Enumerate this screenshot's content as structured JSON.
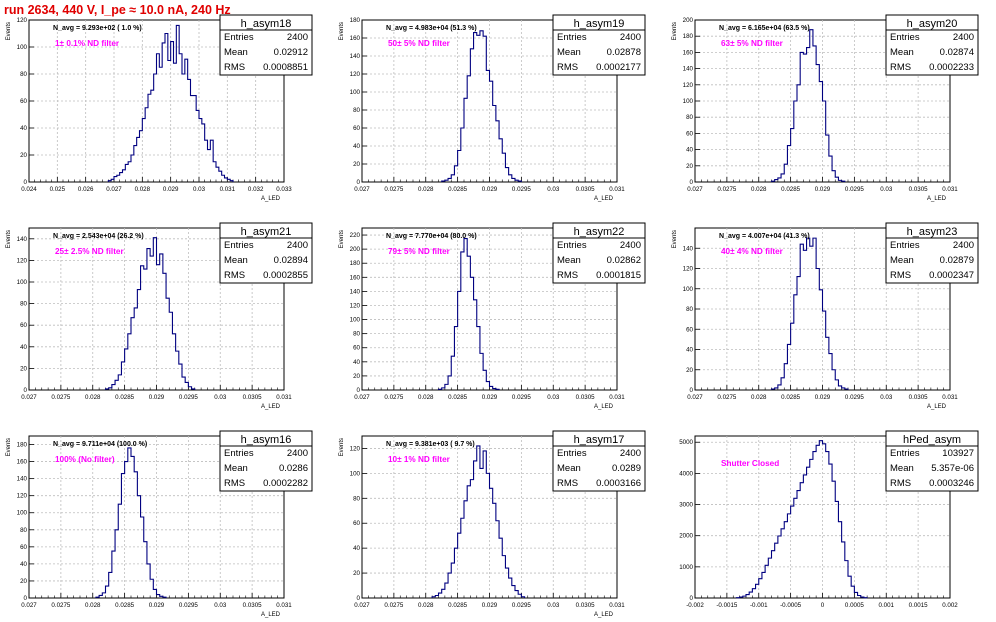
{
  "page": {
    "run_title": "run 2634,   440 V, I_pe ≈ 10.0 nA, 240 Hz"
  },
  "colors": {
    "histogram_line": "#000080",
    "filter_label": "#ff00ff",
    "run_title": "#e00000",
    "grid": "#bdbdbd"
  },
  "chart_data": [
    {
      "type": "bar",
      "name": "h_asym18",
      "avg_label": "N_avg = 9.293e+02 ( 1.0 %)",
      "filter_label": "1± 0.1% ND filter",
      "stats": {
        "entries_label": "Entries",
        "entries": "2400",
        "mean_label": "Mean",
        "mean": "0.02912",
        "rms_label": "RMS",
        "rms": "0.0008851"
      },
      "ylabel": "Events",
      "xlabel": "A_LED",
      "xlim": [
        0.024,
        0.033
      ],
      "ylim": [
        0,
        120
      ],
      "xticks": [
        0.024,
        0.025,
        0.026,
        0.027,
        0.028,
        0.029,
        0.03,
        0.031,
        0.032,
        0.033
      ],
      "xtick_labels": [
        "0.024",
        "0.025",
        "0.026",
        "0.027",
        "0.028",
        "0.029",
        "0.03",
        "0.031",
        "0.032",
        "0.033"
      ],
      "yticks": [
        0,
        20,
        40,
        60,
        80,
        100,
        120
      ],
      "ytick_labels": [
        "0",
        "20",
        "40",
        "60",
        "80",
        "100",
        "120"
      ],
      "grid": true,
      "values": [
        1,
        2,
        4,
        5,
        7,
        9,
        13,
        15,
        20,
        27,
        33,
        38,
        47,
        55,
        65,
        68,
        80,
        95,
        85,
        103,
        110,
        90,
        104,
        88,
        116,
        95,
        80,
        91,
        76,
        64,
        64,
        53,
        47,
        43,
        31,
        24,
        31,
        15,
        11,
        8,
        5,
        3,
        2,
        1
      ],
      "value_x0": 0.0268,
      "value_dx": 0.0001
    },
    {
      "type": "bar",
      "name": "h_asym19",
      "avg_label": "N_avg = 4.983e+04 (51.3 %)",
      "filter_label": "50± 5% ND filter",
      "stats": {
        "entries_label": "Entries",
        "entries": "2400",
        "mean_label": "Mean",
        "mean": "0.02878",
        "rms_label": "RMS",
        "rms": "0.0002177"
      },
      "ylabel": "Events",
      "xlabel": "A_LED",
      "xlim": [
        0.027,
        0.031
      ],
      "ylim": [
        0,
        180
      ],
      "xticks": [
        0.027,
        0.0275,
        0.028,
        0.0285,
        0.029,
        0.0295,
        0.03,
        0.0305,
        0.031
      ],
      "xtick_labels": [
        "0.027",
        "0.0275",
        "0.028",
        "0.0285",
        "0.029",
        "0.0295",
        "0.03",
        "0.0305",
        "0.031"
      ],
      "yticks": [
        0,
        20,
        40,
        60,
        80,
        100,
        120,
        140,
        160,
        180
      ],
      "ytick_labels": [
        "0",
        "20",
        "40",
        "60",
        "80",
        "100",
        "120",
        "140",
        "160",
        "180"
      ],
      "grid": true,
      "values": [
        1,
        2,
        4,
        8,
        18,
        35,
        60,
        93,
        118,
        148,
        166,
        163,
        168,
        162,
        124,
        112,
        85,
        68,
        48,
        32,
        16,
        8,
        4,
        2,
        1
      ],
      "value_x0": 0.02825,
      "value_dx": 5e-05
    },
    {
      "type": "bar",
      "name": "h_asym20",
      "avg_label": "N_avg = 6.165e+04 (63.5 %)",
      "filter_label": "63± 5% ND filter",
      "stats": {
        "entries_label": "Entries",
        "entries": "2400",
        "mean_label": "Mean",
        "mean": "0.02874",
        "rms_label": "RMS",
        "rms": "0.0002233"
      },
      "ylabel": "Events",
      "xlabel": "A_LED",
      "xlim": [
        0.027,
        0.031
      ],
      "ylim": [
        0,
        200
      ],
      "xticks": [
        0.027,
        0.0275,
        0.028,
        0.0285,
        0.029,
        0.0295,
        0.03,
        0.0305,
        0.031
      ],
      "xtick_labels": [
        "0.027",
        "0.0275",
        "0.028",
        "0.0285",
        "0.029",
        "0.0295",
        "0.03",
        "0.0305",
        "0.031"
      ],
      "yticks": [
        0,
        20,
        40,
        60,
        80,
        100,
        120,
        140,
        160,
        180,
        200
      ],
      "ytick_labels": [
        "0",
        "20",
        "40",
        "60",
        "80",
        "100",
        "120",
        "140",
        "160",
        "180",
        "200"
      ],
      "grid": true,
      "values": [
        1,
        3,
        5,
        10,
        22,
        45,
        66,
        100,
        120,
        160,
        158,
        166,
        188,
        168,
        145,
        124,
        100,
        58,
        32,
        14,
        6,
        2,
        1
      ],
      "value_x0": 0.0282,
      "value_dx": 5e-05
    },
    {
      "type": "bar",
      "name": "h_asym21",
      "avg_label": "N_avg = 2.543e+04 (26.2 %)",
      "filter_label": "25± 2.5% ND filter",
      "stats": {
        "entries_label": "Entries",
        "entries": "2400",
        "mean_label": "Mean",
        "mean": "0.02894",
        "rms_label": "RMS",
        "rms": "0.0002855"
      },
      "ylabel": "Events",
      "xlabel": "A_LED",
      "xlim": [
        0.027,
        0.031
      ],
      "ylim": [
        0,
        150
      ],
      "xticks": [
        0.027,
        0.0275,
        0.028,
        0.0285,
        0.029,
        0.0295,
        0.03,
        0.0305,
        0.031
      ],
      "xtick_labels": [
        "0.027",
        "0.0275",
        "0.028",
        "0.0285",
        "0.029",
        "0.0295",
        "0.03",
        "0.0305",
        "0.031"
      ],
      "yticks": [
        0,
        20,
        40,
        60,
        80,
        100,
        120,
        140
      ],
      "ytick_labels": [
        "0",
        "20",
        "40",
        "60",
        "80",
        "100",
        "120",
        "140"
      ],
      "grid": true,
      "values": [
        1,
        2,
        5,
        9,
        14,
        26,
        38,
        52,
        67,
        76,
        93,
        115,
        112,
        131,
        124,
        141,
        116,
        126,
        108,
        85,
        72,
        52,
        36,
        24,
        12,
        7,
        3,
        1
      ],
      "value_x0": 0.0282,
      "value_dx": 5e-05
    },
    {
      "type": "bar",
      "name": "h_asym22",
      "avg_label": "N_avg = 7.770e+04 (80.0 %)",
      "filter_label": "79± 5% ND filter",
      "stats": {
        "entries_label": "Entries",
        "entries": "2400",
        "mean_label": "Mean",
        "mean": "0.02862",
        "rms_label": "RMS",
        "rms": "0.0001815"
      },
      "ylabel": "Events",
      "xlabel": "A_LED",
      "xlim": [
        0.027,
        0.031
      ],
      "ylim": [
        0,
        230
      ],
      "xticks": [
        0.027,
        0.0275,
        0.028,
        0.0285,
        0.029,
        0.0295,
        0.03,
        0.0305,
        0.031
      ],
      "xtick_labels": [
        "0.027",
        "0.0275",
        "0.028",
        "0.0285",
        "0.029",
        "0.0295",
        "0.03",
        "0.0305",
        "0.031"
      ],
      "yticks": [
        0,
        20,
        40,
        60,
        80,
        100,
        120,
        140,
        160,
        180,
        200,
        220
      ],
      "ytick_labels": [
        "0",
        "20",
        "40",
        "60",
        "80",
        "100",
        "120",
        "140",
        "160",
        "180",
        "200",
        "220"
      ],
      "grid": true,
      "values": [
        1,
        3,
        8,
        20,
        48,
        90,
        140,
        196,
        215,
        190,
        160,
        128,
        90,
        52,
        28,
        12,
        5,
        2,
        1
      ],
      "value_x0": 0.0282,
      "value_dx": 5e-05
    },
    {
      "type": "bar",
      "name": "h_asym23",
      "avg_label": "N_avg = 4.007e+04 (41.3 %)",
      "filter_label": "40± 4% ND filter",
      "stats": {
        "entries_label": "Entries",
        "entries": "2400",
        "mean_label": "Mean",
        "mean": "0.02879",
        "rms_label": "RMS",
        "rms": "0.0002347"
      },
      "ylabel": "Events",
      "xlabel": "A_LED",
      "xlim": [
        0.027,
        0.031
      ],
      "ylim": [
        0,
        160
      ],
      "xticks": [
        0.027,
        0.0275,
        0.028,
        0.0285,
        0.029,
        0.0295,
        0.03,
        0.0305,
        0.031
      ],
      "xtick_labels": [
        "0.027",
        "0.0275",
        "0.028",
        "0.0285",
        "0.029",
        "0.0295",
        "0.03",
        "0.0305",
        "0.031"
      ],
      "yticks": [
        0,
        20,
        40,
        60,
        80,
        100,
        120,
        140
      ],
      "ytick_labels": [
        "0",
        "20",
        "40",
        "60",
        "80",
        "100",
        "120",
        "140"
      ],
      "grid": true,
      "values": [
        1,
        2,
        5,
        12,
        26,
        45,
        66,
        94,
        112,
        144,
        138,
        150,
        142,
        150,
        120,
        99,
        78,
        52,
        36,
        20,
        10,
        4,
        2,
        1
      ],
      "value_x0": 0.0282,
      "value_dx": 5e-05
    },
    {
      "type": "bar",
      "name": "h_asym16",
      "avg_label": "N_avg = 9.711e+04 (100.0 %)",
      "filter_label": "100% (No filter)",
      "stats": {
        "entries_label": "Entries",
        "entries": "2400",
        "mean_label": "Mean",
        "mean": "0.0286",
        "rms_label": "RMS",
        "rms": "0.0002282"
      },
      "ylabel": "Events",
      "xlabel": "A_LED",
      "xlim": [
        0.027,
        0.031
      ],
      "ylim": [
        0,
        190
      ],
      "xticks": [
        0.027,
        0.0275,
        0.028,
        0.0285,
        0.029,
        0.0295,
        0.03,
        0.0305,
        0.031
      ],
      "xtick_labels": [
        "0.027",
        "0.0275",
        "0.028",
        "0.0285",
        "0.029",
        "0.0295",
        "0.03",
        "0.0305",
        "0.031"
      ],
      "yticks": [
        0,
        20,
        40,
        60,
        80,
        100,
        120,
        140,
        160,
        180
      ],
      "ytick_labels": [
        "0",
        "20",
        "40",
        "60",
        "80",
        "100",
        "120",
        "140",
        "160",
        "180"
      ],
      "grid": true,
      "values": [
        1,
        3,
        6,
        14,
        30,
        55,
        80,
        110,
        146,
        160,
        176,
        166,
        148,
        120,
        95,
        66,
        40,
        22,
        10,
        4,
        2,
        1
      ],
      "value_x0": 0.02805,
      "value_dx": 5e-05
    },
    {
      "type": "bar",
      "name": "h_asym17",
      "avg_label": "N_avg = 9.381e+03 ( 9.7 %)",
      "filter_label": "10± 1% ND filter",
      "stats": {
        "entries_label": "Entries",
        "entries": "2400",
        "mean_label": "Mean",
        "mean": "0.0289",
        "rms_label": "RMS",
        "rms": "0.0003166"
      },
      "ylabel": "Events",
      "xlabel": "A_LED",
      "xlim": [
        0.027,
        0.031
      ],
      "ylim": [
        0,
        130
      ],
      "xticks": [
        0.027,
        0.0275,
        0.028,
        0.0285,
        0.029,
        0.0295,
        0.03,
        0.0305,
        0.031
      ],
      "xtick_labels": [
        "0.027",
        "0.0275",
        "0.028",
        "0.0285",
        "0.029",
        "0.0295",
        "0.03",
        "0.0305",
        "0.031"
      ],
      "yticks": [
        0,
        20,
        40,
        60,
        80,
        100,
        120
      ],
      "ytick_labels": [
        "0",
        "20",
        "40",
        "60",
        "80",
        "100",
        "120"
      ],
      "grid": true,
      "values": [
        1,
        2,
        4,
        7,
        12,
        20,
        28,
        40,
        52,
        64,
        78,
        90,
        95,
        110,
        122,
        104,
        118,
        100,
        88,
        76,
        62,
        48,
        34,
        24,
        16,
        10,
        6,
        3,
        1
      ],
      "value_x0": 0.0281,
      "value_dx": 5e-05
    },
    {
      "type": "bar",
      "name": "hPed_asym",
      "avg_label": "",
      "filter_label": "Shutter Closed",
      "stats": {
        "entries_label": "Entries",
        "entries": "103927",
        "mean_label": "Mean",
        "mean": "5.357e-06",
        "rms_label": "RMS",
        "rms": "0.0003246"
      },
      "ylabel": "",
      "xlabel": "",
      "xlim": [
        -0.002,
        0.002
      ],
      "ylim": [
        0,
        5200
      ],
      "xticks": [
        -0.002,
        -0.0015,
        -0.001,
        -0.0005,
        0,
        0.0005,
        0.001,
        0.0015,
        0.002
      ],
      "xtick_labels": [
        "-0.002",
        "-0.0015",
        "-0.001",
        "-0.0005",
        "0",
        "0.0005",
        "0.001",
        "0.0015",
        "0.002"
      ],
      "yticks": [
        0,
        1000,
        2000,
        3000,
        4000,
        5000
      ],
      "ytick_labels": [
        "0",
        "1000",
        "2000",
        "3000",
        "4000",
        "5000"
      ],
      "grid": true,
      "values": [
        10,
        30,
        60,
        110,
        190,
        300,
        440,
        620,
        820,
        1050,
        1280,
        1520,
        1760,
        1990,
        2220,
        2450,
        2700,
        2950,
        3200,
        3450,
        3700,
        3950,
        4200,
        4450,
        4700,
        4900,
        5050,
        4950,
        4700,
        4300,
        3750,
        3100,
        2450,
        1800,
        1200,
        700,
        380,
        180,
        80,
        30,
        10
      ],
      "value_x0": -0.00135,
      "value_dx": 5e-05
    }
  ]
}
